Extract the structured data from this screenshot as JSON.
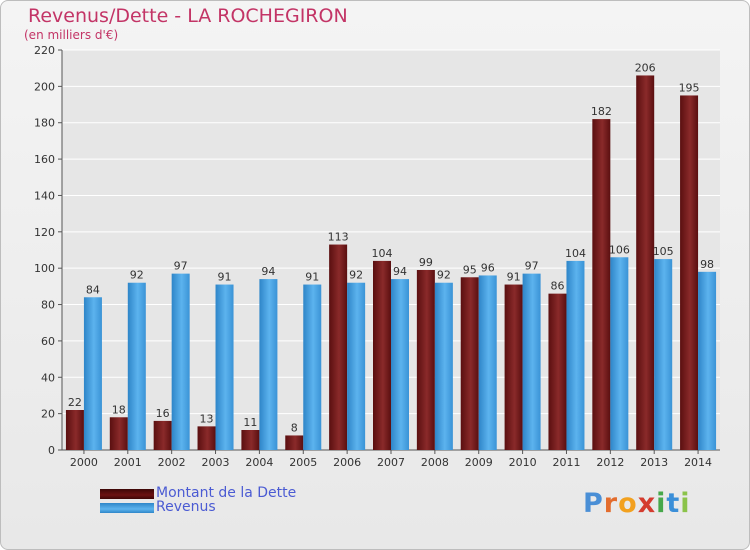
{
  "header": {
    "title": "Revenus/Dette - LA ROCHEGIRON",
    "subtitle": "(en milliers d'€)"
  },
  "colors": {
    "dette": "#7a1d1f",
    "revenus": "#4aa3e6",
    "title": "#c33466",
    "legend_text": "#4b5bd3",
    "grid": "#ffffff"
  },
  "legend": {
    "items": [
      {
        "label": "Montant de la Dette",
        "color": "#6b1212"
      },
      {
        "label": "Revenus",
        "color": "#4aa3e6"
      }
    ]
  },
  "logo": {
    "text": "Proxiti",
    "letters": [
      "P",
      "r",
      "o",
      "x",
      "i",
      "t",
      "i"
    ],
    "letter_colors": [
      "#4a8fd6",
      "#e36c2d",
      "#f2a11f",
      "#d43c2f",
      "#47a84b",
      "#3b8fd8",
      "#8bc34a"
    ]
  },
  "chart_data": {
    "type": "bar",
    "categories": [
      "2000",
      "2001",
      "2002",
      "2003",
      "2004",
      "2005",
      "2006",
      "2007",
      "2008",
      "2009",
      "2010",
      "2011",
      "2012",
      "2013",
      "2014"
    ],
    "series": [
      {
        "name": "Montant de la Dette",
        "values": [
          22,
          18,
          16,
          13,
          11,
          8,
          113,
          104,
          99,
          95,
          91,
          86,
          182,
          206,
          195
        ]
      },
      {
        "name": "Revenus",
        "values": [
          84,
          92,
          97,
          91,
          94,
          91,
          92,
          94,
          92,
          96,
          97,
          104,
          106,
          105,
          98
        ]
      }
    ],
    "title": "Revenus/Dette - LA ROCHEGIRON",
    "subtitle": "(en milliers d'€)",
    "ylim": [
      0,
      220
    ],
    "yticks": [
      0,
      20,
      40,
      60,
      80,
      100,
      120,
      140,
      160,
      180,
      200,
      220
    ],
    "grid": true,
    "legend_position": "bottom-left"
  }
}
